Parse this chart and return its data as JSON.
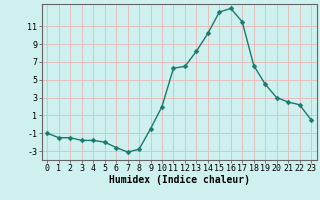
{
  "x": [
    0,
    1,
    2,
    3,
    4,
    5,
    6,
    7,
    8,
    9,
    10,
    11,
    12,
    13,
    14,
    15,
    16,
    17,
    18,
    19,
    20,
    21,
    22,
    23
  ],
  "y": [
    -1.0,
    -1.5,
    -1.5,
    -1.8,
    -1.8,
    -2.0,
    -2.6,
    -3.1,
    -2.8,
    -0.5,
    2.0,
    6.3,
    6.5,
    8.2,
    10.2,
    12.6,
    13.0,
    11.5,
    6.6,
    4.5,
    3.0,
    2.5,
    2.2,
    0.5
  ],
  "line_color": "#1a7a6e",
  "marker": "D",
  "marker_size": 2.5,
  "bg_color": "#cef0ef",
  "grid_color": "#e8b8b8",
  "xlabel": "Humidex (Indice chaleur)",
  "xlim": [
    -0.5,
    23.5
  ],
  "ylim": [
    -4,
    13.5
  ],
  "yticks": [
    -3,
    -1,
    1,
    3,
    5,
    7,
    9,
    11
  ],
  "xticks": [
    0,
    1,
    2,
    3,
    4,
    5,
    6,
    7,
    8,
    9,
    10,
    11,
    12,
    13,
    14,
    15,
    16,
    17,
    18,
    19,
    20,
    21,
    22,
    23
  ],
  "xlabel_fontsize": 7,
  "tick_fontsize": 6
}
